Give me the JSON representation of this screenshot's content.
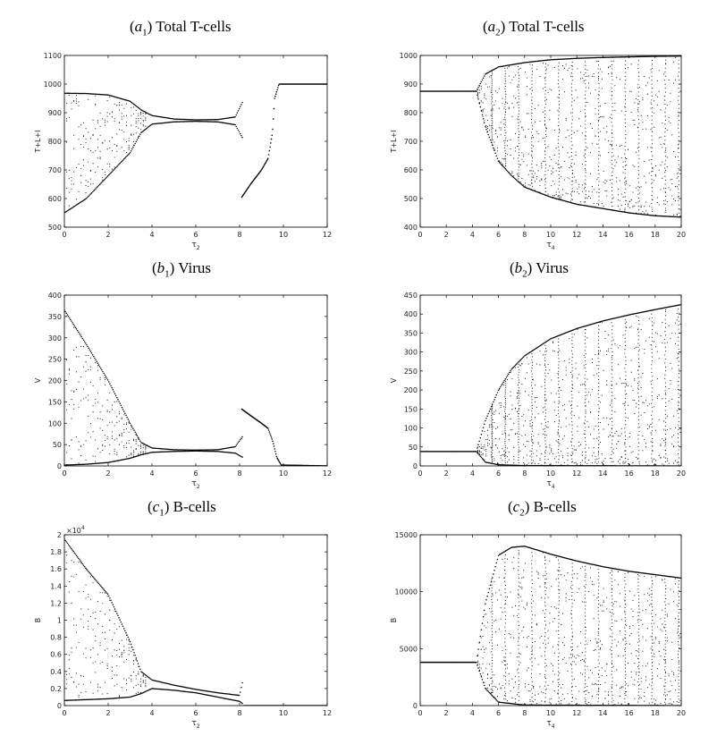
{
  "chart_data": [
    {
      "id": "a1",
      "type": "scatter",
      "title_letter": "a",
      "title_sub": "1",
      "title_text": "Total T-cells",
      "xlabel": "τ",
      "xlabel_sub": "2",
      "ylabel": "T+L+I",
      "xlim": [
        0,
        12
      ],
      "ylim": [
        500,
        1100
      ],
      "xticks": [
        0,
        2,
        4,
        6,
        8,
        10,
        12
      ],
      "yticks": [
        500,
        600,
        700,
        800,
        900,
        1000,
        1100
      ],
      "multiplier": "",
      "bifurcation": {
        "equilibrium_value": 878,
        "upper_envelope": [
          [
            0,
            968
          ],
          [
            1,
            967
          ],
          [
            2,
            962
          ],
          [
            3,
            940
          ],
          [
            3.5,
            910
          ],
          [
            4,
            890
          ],
          [
            5,
            878
          ],
          [
            6,
            875
          ],
          [
            7,
            876
          ],
          [
            7.8,
            885
          ],
          [
            8.15,
            940
          ]
        ],
        "lower_envelope": [
          [
            0,
            550
          ],
          [
            1,
            600
          ],
          [
            2,
            680
          ],
          [
            3,
            760
          ],
          [
            3.5,
            830
          ],
          [
            4,
            860
          ],
          [
            5,
            868
          ],
          [
            6,
            870
          ],
          [
            7,
            868
          ],
          [
            7.8,
            858
          ],
          [
            8.15,
            810
          ]
        ],
        "branch": [
          [
            8.1,
            605
          ],
          [
            8.5,
            650
          ],
          [
            9,
            700
          ],
          [
            9.3,
            740
          ],
          [
            9.5,
            830
          ],
          [
            9.6,
            950
          ],
          [
            9.8,
            1000
          ],
          [
            12,
            1000
          ]
        ]
      }
    },
    {
      "id": "a2",
      "type": "scatter",
      "title_letter": "a",
      "title_sub": "2",
      "title_text": "Total T-cells",
      "xlabel": "τ",
      "xlabel_sub": "4",
      "ylabel": "T+L+I",
      "xlim": [
        0,
        20
      ],
      "ylim": [
        400,
        1000
      ],
      "xticks": [
        0,
        2,
        4,
        6,
        8,
        10,
        12,
        14,
        16,
        18,
        20
      ],
      "yticks": [
        400,
        500,
        600,
        700,
        800,
        900,
        1000
      ],
      "multiplier": "",
      "bifurcation": {
        "equilibrium_value": 875,
        "equilibrium_until": 4.3,
        "upper_envelope": [
          [
            4.3,
            875
          ],
          [
            5,
            935
          ],
          [
            6,
            960
          ],
          [
            8,
            975
          ],
          [
            10,
            985
          ],
          [
            12,
            990
          ],
          [
            14,
            993
          ],
          [
            16,
            995
          ],
          [
            18,
            997
          ],
          [
            20,
            998
          ]
        ],
        "lower_envelope": [
          [
            4.3,
            875
          ],
          [
            5,
            750
          ],
          [
            6,
            630
          ],
          [
            7,
            580
          ],
          [
            8,
            540
          ],
          [
            10,
            505
          ],
          [
            12,
            480
          ],
          [
            14,
            465
          ],
          [
            16,
            450
          ],
          [
            18,
            440
          ],
          [
            20,
            435
          ]
        ],
        "oscillation_spikes": 15
      }
    },
    {
      "id": "b1",
      "type": "scatter",
      "title_letter": "b",
      "title_sub": "1",
      "title_text": "Virus",
      "xlabel": "τ",
      "xlabel_sub": "2",
      "ylabel": "V",
      "xlim": [
        0,
        12
      ],
      "ylim": [
        0,
        400
      ],
      "xticks": [
        0,
        2,
        4,
        6,
        8,
        10,
        12
      ],
      "yticks": [
        0,
        50,
        100,
        150,
        200,
        250,
        300,
        350,
        400
      ],
      "multiplier": "",
      "bifurcation": {
        "equilibrium_value": 36,
        "upper_envelope": [
          [
            0,
            365
          ],
          [
            1,
            285
          ],
          [
            2,
            200
          ],
          [
            3,
            100
          ],
          [
            3.5,
            55
          ],
          [
            4,
            42
          ],
          [
            5,
            38
          ],
          [
            6,
            37
          ],
          [
            7,
            38
          ],
          [
            7.8,
            45
          ],
          [
            8.15,
            70
          ]
        ],
        "lower_envelope": [
          [
            0,
            2
          ],
          [
            1,
            4
          ],
          [
            2,
            8
          ],
          [
            3,
            18
          ],
          [
            3.5,
            26
          ],
          [
            4,
            32
          ],
          [
            5,
            34
          ],
          [
            6,
            35
          ],
          [
            7,
            34
          ],
          [
            7.8,
            30
          ],
          [
            8.15,
            20
          ]
        ],
        "branch": [
          [
            8.1,
            133
          ],
          [
            8.5,
            118
          ],
          [
            9,
            100
          ],
          [
            9.3,
            88
          ],
          [
            9.5,
            60
          ],
          [
            9.7,
            20
          ],
          [
            9.9,
            2
          ],
          [
            12,
            0
          ]
        ]
      }
    },
    {
      "id": "b2",
      "type": "scatter",
      "title_letter": "b",
      "title_sub": "2",
      "title_text": "Virus",
      "xlabel": "τ",
      "xlabel_sub": "4",
      "ylabel": "V",
      "xlim": [
        0,
        20
      ],
      "ylim": [
        0,
        450
      ],
      "xticks": [
        0,
        2,
        4,
        6,
        8,
        10,
        12,
        14,
        16,
        18,
        20
      ],
      "yticks": [
        0,
        50,
        100,
        150,
        200,
        250,
        300,
        350,
        400,
        450
      ],
      "multiplier": "",
      "bifurcation": {
        "equilibrium_value": 38,
        "equilibrium_until": 4.3,
        "upper_envelope": [
          [
            4.3,
            38
          ],
          [
            5,
            120
          ],
          [
            6,
            200
          ],
          [
            7,
            255
          ],
          [
            8,
            290
          ],
          [
            10,
            335
          ],
          [
            12,
            362
          ],
          [
            14,
            382
          ],
          [
            16,
            398
          ],
          [
            18,
            412
          ],
          [
            20,
            425
          ]
        ],
        "lower_envelope": [
          [
            4.3,
            38
          ],
          [
            5,
            10
          ],
          [
            6,
            3
          ],
          [
            8,
            1
          ],
          [
            20,
            0
          ]
        ],
        "oscillation_spikes": 15
      }
    },
    {
      "id": "c1",
      "type": "scatter",
      "title_letter": "c",
      "title_sub": "1",
      "title_text": "B-cells",
      "xlabel": "τ",
      "xlabel_sub": "2",
      "ylabel": "B",
      "xlim": [
        0,
        12
      ],
      "ylim": [
        0,
        2
      ],
      "xticks": [
        0,
        2,
        4,
        6,
        8,
        10,
        12
      ],
      "yticks": [
        0,
        0.2,
        0.4,
        0.6,
        0.8,
        1,
        1.2,
        1.4,
        1.6,
        1.8,
        2
      ],
      "ytick_labels": [
        "0",
        "0.2",
        "0.4",
        "0.6",
        "0.8",
        "1",
        "1.2",
        "1.4",
        "1.6",
        "1.8",
        "2"
      ],
      "multiplier": "×10",
      "multiplier_exp": "4",
      "bifurcation": {
        "equilibrium_value": 0.2,
        "upper_envelope": [
          [
            0,
            1.95
          ],
          [
            1,
            1.6
          ],
          [
            2,
            1.3
          ],
          [
            3,
            0.75
          ],
          [
            3.5,
            0.4
          ],
          [
            4,
            0.3
          ],
          [
            5,
            0.24
          ],
          [
            6,
            0.19
          ],
          [
            7,
            0.15
          ],
          [
            8,
            0.12
          ],
          [
            8.15,
            0.3
          ]
        ],
        "lower_envelope": [
          [
            0,
            0.06
          ],
          [
            1,
            0.07
          ],
          [
            2,
            0.08
          ],
          [
            3,
            0.1
          ],
          [
            3.5,
            0.14
          ],
          [
            4,
            0.2
          ],
          [
            5,
            0.18
          ],
          [
            6,
            0.15
          ],
          [
            7,
            0.1
          ],
          [
            8,
            0.05
          ],
          [
            8.15,
            0.02
          ]
        ],
        "branch": [
          [
            8.2,
            0
          ],
          [
            12,
            0
          ]
        ]
      }
    },
    {
      "id": "c2",
      "type": "scatter",
      "title_letter": "c",
      "title_sub": "2",
      "title_text": "B-cells",
      "xlabel": "τ",
      "xlabel_sub": "4",
      "ylabel": "B",
      "xlim": [
        0,
        20
      ],
      "ylim": [
        0,
        15000
      ],
      "xticks": [
        0,
        2,
        4,
        6,
        8,
        10,
        12,
        14,
        16,
        18,
        20
      ],
      "yticks": [
        0,
        5000,
        10000,
        15000
      ],
      "multiplier": "",
      "bifurcation": {
        "equilibrium_value": 3800,
        "equilibrium_until": 4.3,
        "upper_envelope": [
          [
            4.3,
            3800
          ],
          [
            5,
            9000
          ],
          [
            6,
            13200
          ],
          [
            7,
            13900
          ],
          [
            8,
            14000
          ],
          [
            10,
            13300
          ],
          [
            12,
            12700
          ],
          [
            14,
            12200
          ],
          [
            16,
            11800
          ],
          [
            18,
            11500
          ],
          [
            20,
            11200
          ]
        ],
        "lower_envelope": [
          [
            4.3,
            3800
          ],
          [
            5,
            1500
          ],
          [
            6,
            300
          ],
          [
            8,
            50
          ],
          [
            20,
            0
          ]
        ],
        "oscillation_spikes": 15
      }
    }
  ]
}
